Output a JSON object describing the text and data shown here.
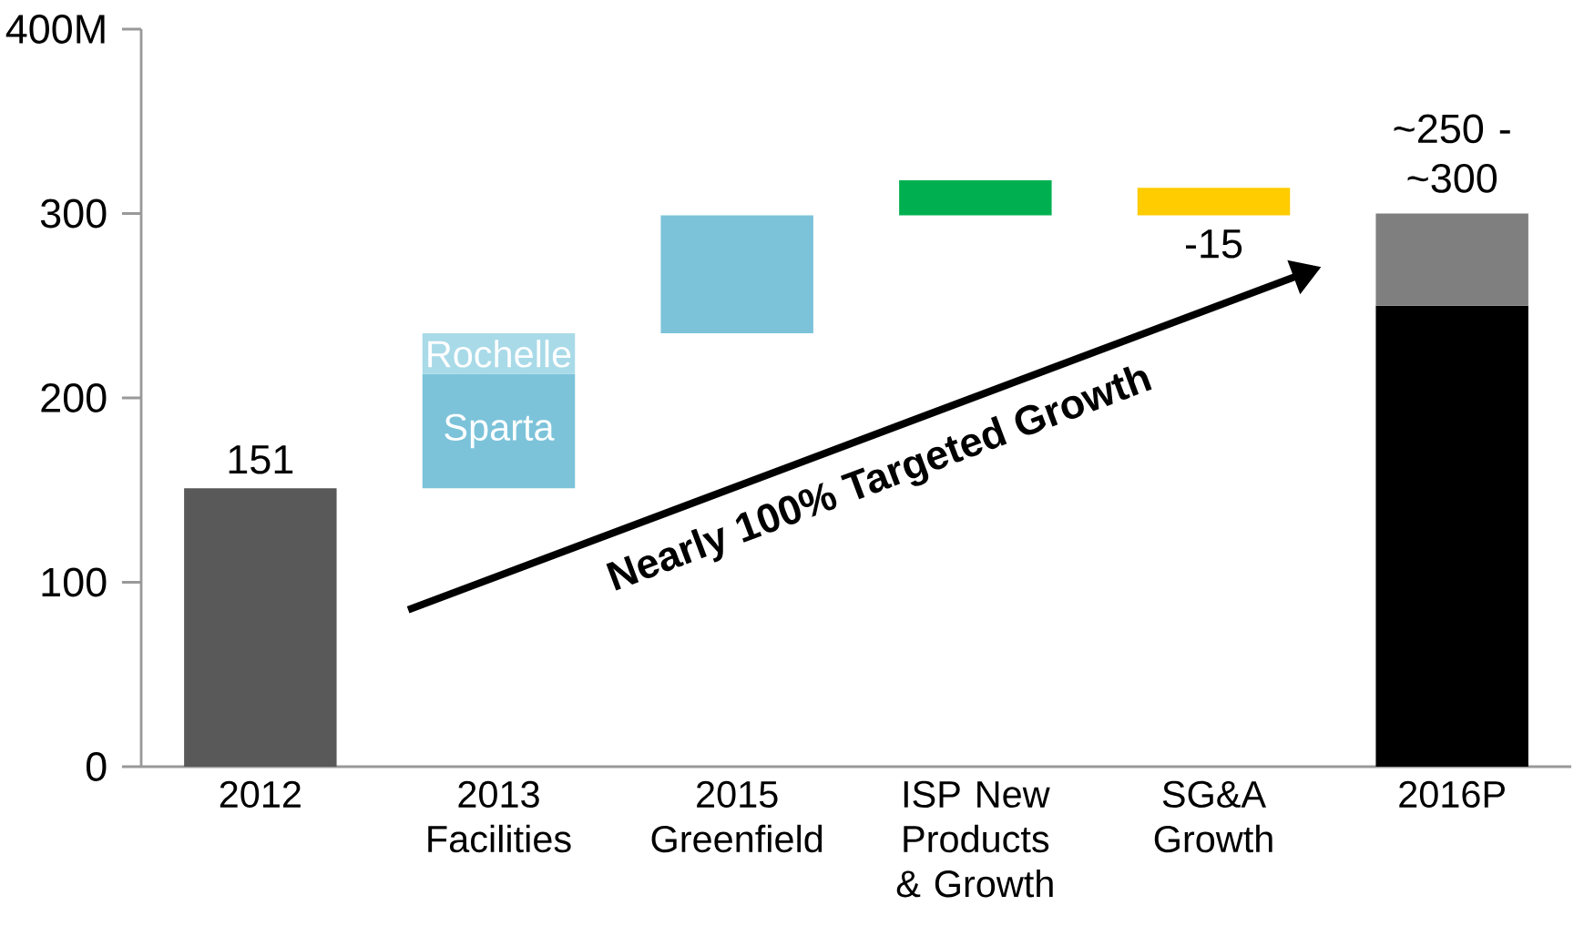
{
  "chart_data": {
    "type": "bar",
    "categories": [
      "2012",
      "2013 Facilities",
      "2015 Greenfield",
      "ISP New Products & Growth",
      "SG&A Growth",
      "2016P"
    ],
    "series": [
      {
        "values": [
          151,
          null,
          64,
          19,
          -15,
          250
        ],
        "base": [
          0,
          null,
          235,
          299,
          314,
          0
        ],
        "colors": [
          "#595959",
          null,
          "#7cc3da",
          "#00b050",
          "#ffcc00",
          "#000000"
        ],
        "value_labels": [
          "151",
          null,
          null,
          null,
          "-15",
          null
        ]
      },
      {
        "name": "Sparta",
        "color": "#7cc3da",
        "values": [
          null,
          62,
          null,
          null,
          null,
          null
        ],
        "base": [
          null,
          151,
          null,
          null,
          null,
          null
        ]
      },
      {
        "name": "Rochelle",
        "color": "#a9dae8",
        "values": [
          null,
          22,
          null,
          null,
          null,
          null
        ],
        "base": [
          null,
          213,
          null,
          null,
          null,
          null
        ]
      },
      {
        "color": "#7f7f7f",
        "values": [
          null,
          null,
          null,
          null,
          null,
          50
        ],
        "base": [
          null,
          null,
          null,
          null,
          null,
          250
        ]
      }
    ],
    "totals": [
      null,
      null,
      null,
      null,
      null,
      "~250 - ~300"
    ],
    "ylim": [
      0,
      400
    ],
    "yticks": [
      0,
      100,
      200,
      300,
      {
        "value": 400,
        "label": "400M"
      }
    ],
    "annotations": [
      "Nearly 100% Targeted Growth"
    ]
  }
}
